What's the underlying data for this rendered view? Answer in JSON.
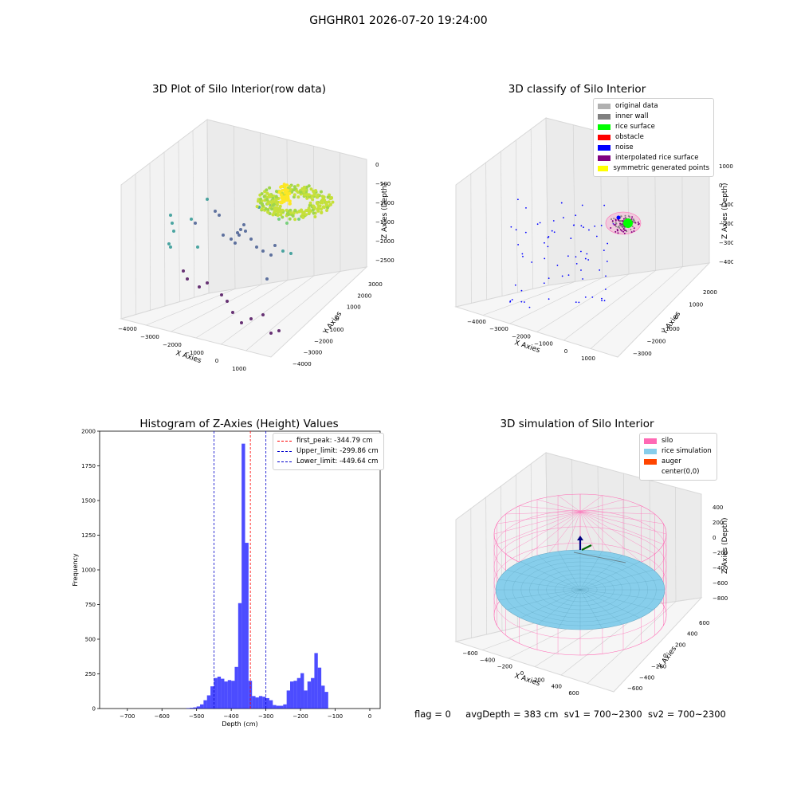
{
  "suptitle": "GHGHR01 2026-07-20 19:24:00",
  "footer": {
    "flag": "flag = 0",
    "avg": "avgDepth = 383 cm",
    "sv1": "sv1 = 700~2300",
    "sv2": "sv2 = 700~2300"
  },
  "chart_data": [
    {
      "type": "scatter",
      "title": "3D Plot of Silo Interior(row data)",
      "xlabel": "X Axies",
      "ylabel": "Y Axies",
      "zlabel": "Z Axies (Depth)",
      "x_ticks": [
        "-4000",
        "-3000",
        "-2000",
        "-1000",
        "0",
        "1000"
      ],
      "y_ticks": [
        "-4000",
        "-3000",
        "-2000",
        "-1000",
        "0",
        "1000",
        "2000",
        "3000"
      ],
      "z_ticks": [
        "0",
        "-500",
        "-1000",
        "-1500",
        "-2000",
        "-2500"
      ],
      "colormap": [
        "#440154",
        "#3b528b",
        "#21918c",
        "#5ec962",
        "#fde725"
      ]
    },
    {
      "type": "scatter",
      "title": "3D classify of Silo Interior",
      "xlabel": "X Axies",
      "ylabel": "Y Axies",
      "zlabel": "Z Axies (Depth)",
      "x_ticks": [
        "-4000",
        "-3000",
        "-2000",
        "-1000",
        "0",
        "1000"
      ],
      "y_ticks": [
        "-3000",
        "-2000",
        "-1000",
        "0",
        "1000",
        "2000"
      ],
      "z_ticks": [
        "1000",
        "0",
        "-1000",
        "-2000",
        "-3000",
        "-4000"
      ],
      "legend": [
        {
          "label": "original data",
          "color": "#b0b0b0"
        },
        {
          "label": "inner wall",
          "color": "#808080"
        },
        {
          "label": "rice surface",
          "color": "#00ff00"
        },
        {
          "label": "obstacle",
          "color": "#ff0000"
        },
        {
          "label": "noise",
          "color": "#0000ff"
        },
        {
          "label": "interpolated rice surface",
          "color": "#800080"
        },
        {
          "label": "symmetric generated points",
          "color": "#ffff00"
        }
      ]
    },
    {
      "type": "bar",
      "title": "Histogram of Z-Axies (Height) Values",
      "xlabel": "Depth (cm)",
      "ylabel": "Frequency",
      "xlim": [
        -780,
        30
      ],
      "ylim": [
        0,
        2000
      ],
      "x_ticks": [
        -700,
        -600,
        -500,
        -400,
        -300,
        -200,
        -100,
        0
      ],
      "y_ticks": [
        0,
        250,
        500,
        750,
        1000,
        1250,
        1500,
        1750,
        2000
      ],
      "bin_width": 10,
      "bins_start": [
        -530,
        -520,
        -510,
        -500,
        -490,
        -480,
        -470,
        -460,
        -450,
        -440,
        -430,
        -420,
        -410,
        -400,
        -390,
        -380,
        -370,
        -360,
        -350,
        -340,
        -330,
        -320,
        -310,
        -300,
        -290,
        -280,
        -270,
        -260,
        -250,
        -240,
        -230,
        -220,
        -210,
        -200,
        -190,
        -180,
        -170,
        -160,
        -150,
        -140,
        -130,
        -120,
        -110,
        -100,
        -90,
        -80,
        -70,
        -60,
        -50,
        -40,
        -30,
        -20,
        -10
      ],
      "values": [
        3,
        5,
        8,
        15,
        30,
        60,
        95,
        160,
        220,
        230,
        215,
        195,
        205,
        200,
        300,
        760,
        1910,
        1195,
        200,
        90,
        80,
        90,
        85,
        75,
        60,
        25,
        20,
        20,
        30,
        130,
        195,
        200,
        220,
        255,
        130,
        195,
        220,
        400,
        295,
        165,
        120,
        0,
        0,
        0,
        0,
        0,
        0,
        0,
        0,
        0,
        0,
        0,
        0
      ],
      "color": "#0000ff",
      "lines": [
        {
          "label": "first_peak: -344.79 cm",
          "x": -344.79,
          "color": "#ff0000"
        },
        {
          "label": "Upper_limit: -299.86 cm",
          "x": -299.86,
          "color": "#0000cc"
        },
        {
          "label": "Lower_limit: -449.64 cm",
          "x": -449.64,
          "color": "#0000cc"
        }
      ]
    },
    {
      "type": "scatter",
      "title": "3D simulation of Silo Interior",
      "xlabel": "X Axies",
      "ylabel": "Y Axies",
      "zlabel": "Z Axies (Depth)",
      "x_ticks": [
        "-600",
        "-400",
        "-200",
        "0",
        "200",
        "400",
        "600"
      ],
      "y_ticks": [
        "-600",
        "-400",
        "-200",
        "0",
        "200",
        "400",
        "600"
      ],
      "z_ticks": [
        "400",
        "200",
        "0",
        "-200",
        "-400",
        "-600",
        "-800"
      ],
      "legend": [
        {
          "label": "silo",
          "color": "#ff69b4"
        },
        {
          "label": "rice simulation",
          "color": "#87ceeb"
        },
        {
          "label": "auger",
          "color": "#ff4500"
        },
        {
          "label": "center(0,0)",
          "color": ""
        }
      ]
    }
  ]
}
